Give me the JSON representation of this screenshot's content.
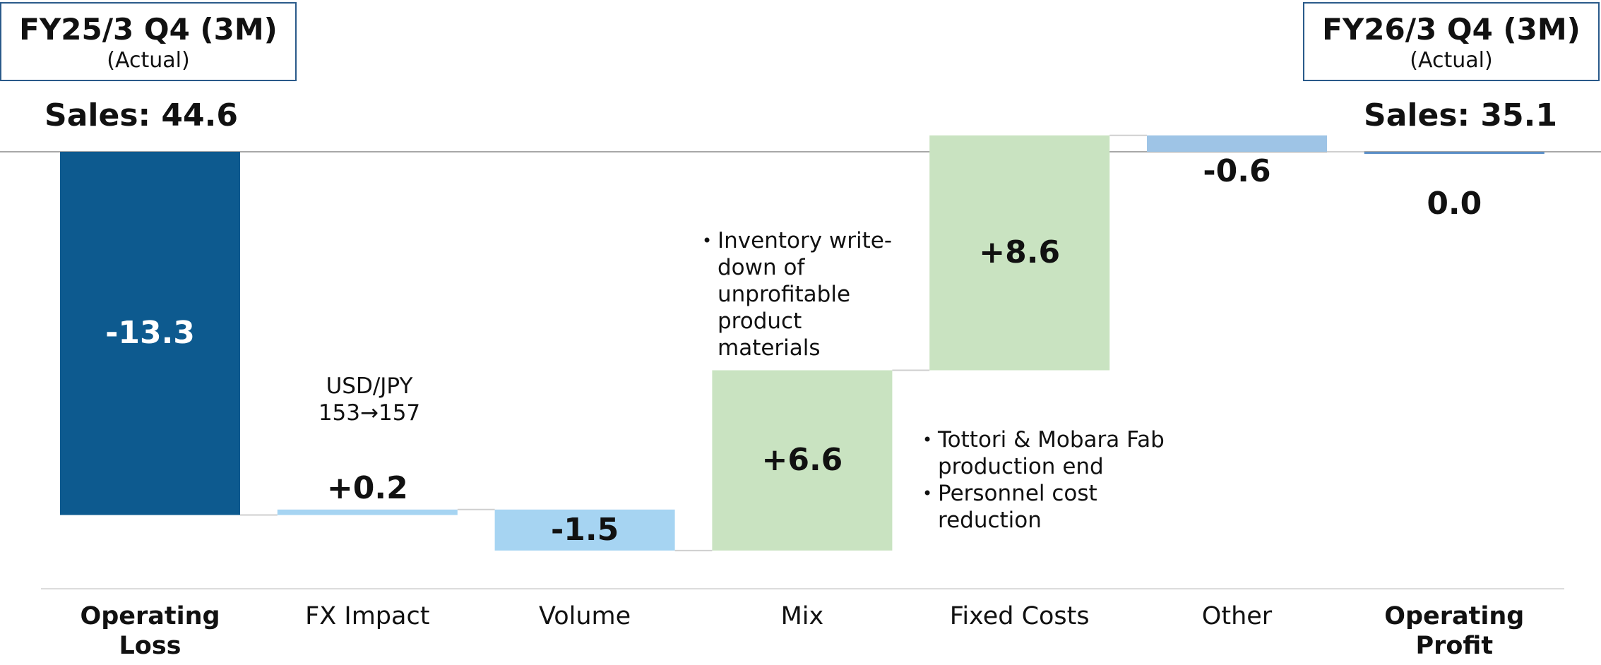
{
  "chart_data": {
    "type": "waterfall",
    "left_header": {
      "title": "FY25/3 Q4 (3M)",
      "subtitle": "(Actual)",
      "sales": "Sales:  44.6"
    },
    "right_header": {
      "title": "FY26/3 Q4 (3M)",
      "subtitle": "(Actual)",
      "sales": "Sales:  35.1"
    },
    "categories": [
      "Operating Loss",
      "FX Impact",
      "Volume",
      "Mix",
      "Fixed Costs",
      "Other",
      "Operating Profit"
    ],
    "values": [
      -13.3,
      0.2,
      -1.5,
      6.6,
      8.6,
      -0.6,
      0.0
    ],
    "value_labels": [
      "-13.3",
      "+0.2",
      "-1.5",
      "+6.6",
      "+8.6",
      "-0.6",
      "0.0"
    ],
    "measure": [
      "absolute",
      "relative",
      "relative",
      "relative",
      "relative",
      "relative",
      "total"
    ],
    "colors": [
      "#0d5a8f",
      "#a6d4f2",
      "#a6d4f2",
      "#c9e3c1",
      "#c9e3c1",
      "#9ec4e6",
      "#5b8fc7"
    ],
    "ylim": [
      -16,
      2
    ],
    "annotations": {
      "fx": [
        "USD/JPY",
        "153→157"
      ],
      "mix": [
        "Inventory write-down of unprofitable product materials"
      ],
      "fixed": [
        "Tottori & Mobara Fab production end",
        "Personnel cost reduction"
      ]
    }
  }
}
